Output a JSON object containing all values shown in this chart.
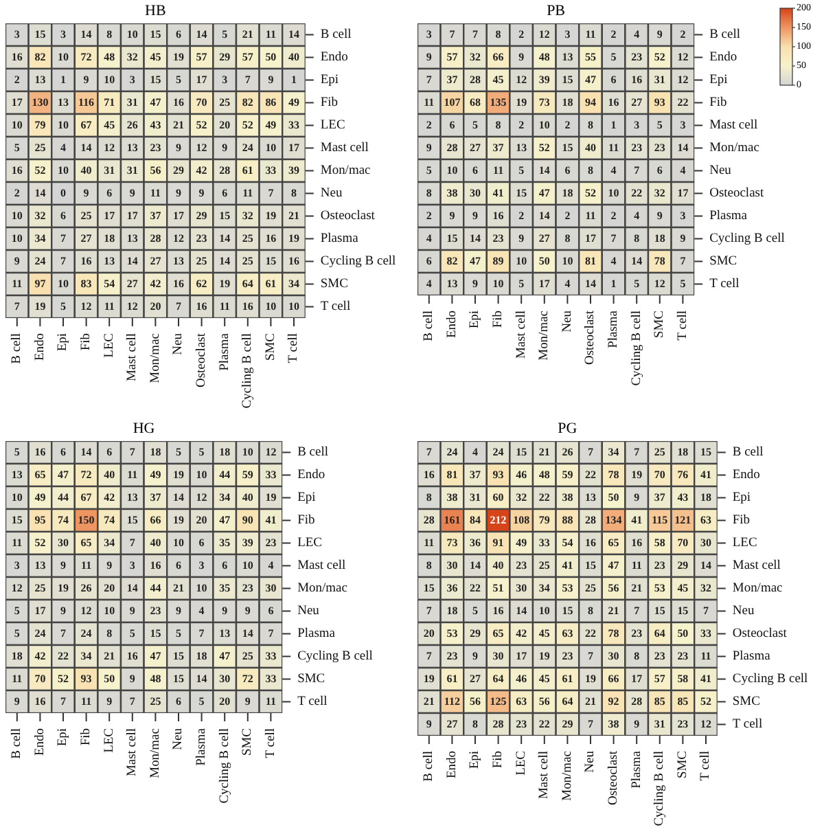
{
  "chart_data": [
    {
      "type": "heatmap",
      "title": "HB",
      "data_labels": true,
      "categories": [
        "B cell",
        "Endo",
        "Epi",
        "Fib",
        "LEC",
        "Mast cell",
        "Mon/mac",
        "Neu",
        "Osteoclast",
        "Plasma",
        "Cycling B cell",
        "SMC",
        "T cell"
      ],
      "y_categories": [
        "B cell",
        "Endo",
        "Epi",
        "Fib",
        "LEC",
        "Mast cell",
        "Mon/mac",
        "Neu",
        "Osteoclast",
        "Plasma",
        "Cycling B cell",
        "SMC",
        "T cell"
      ],
      "cells": [
        [
          3,
          15,
          3,
          14,
          8,
          10,
          15,
          6,
          14,
          5,
          21,
          11,
          14
        ],
        [
          16,
          82,
          10,
          72,
          48,
          32,
          45,
          19,
          57,
          29,
          57,
          50,
          40
        ],
        [
          2,
          13,
          1,
          9,
          10,
          3,
          15,
          5,
          17,
          3,
          7,
          9,
          1
        ],
        [
          17,
          130,
          13,
          116,
          71,
          31,
          47,
          16,
          70,
          25,
          82,
          86,
          49
        ],
        [
          10,
          79,
          10,
          67,
          45,
          26,
          43,
          21,
          52,
          20,
          52,
          49,
          33
        ],
        [
          5,
          25,
          4,
          14,
          12,
          13,
          23,
          9,
          12,
          9,
          24,
          10,
          17
        ],
        [
          16,
          52,
          10,
          40,
          31,
          31,
          56,
          29,
          42,
          28,
          61,
          33,
          39
        ],
        [
          2,
          14,
          0,
          9,
          6,
          9,
          11,
          9,
          9,
          6,
          11,
          7,
          8
        ],
        [
          10,
          32,
          6,
          25,
          17,
          17,
          37,
          17,
          29,
          15,
          32,
          19,
          21
        ],
        [
          10,
          34,
          7,
          27,
          18,
          13,
          28,
          12,
          23,
          14,
          25,
          16,
          19
        ],
        [
          9,
          24,
          7,
          16,
          13,
          14,
          27,
          13,
          25,
          14,
          25,
          15,
          16
        ],
        [
          11,
          97,
          10,
          83,
          54,
          27,
          42,
          16,
          62,
          19,
          64,
          61,
          34
        ],
        [
          7,
          19,
          5,
          12,
          11,
          12,
          20,
          7,
          16,
          11,
          16,
          10,
          10
        ]
      ]
    },
    {
      "type": "heatmap",
      "title": "PB",
      "data_labels": true,
      "clim": [
        0,
        200
      ],
      "cticks": [
        0,
        50,
        100,
        150,
        200
      ],
      "categories": [
        "B cell",
        "Endo",
        "Epi",
        "Fib",
        "Mast cell",
        "Mon/mac",
        "Neu",
        "Osteoclast",
        "Plasma",
        "Cycling B cell",
        "SMC",
        "T cell"
      ],
      "y_categories": [
        "B cell",
        "Endo",
        "Epi",
        "Fib",
        "Mast cell",
        "Mon/mac",
        "Neu",
        "Osteoclast",
        "Plasma",
        "Cycling B cell",
        "SMC",
        "T cell"
      ],
      "cells": [
        [
          3,
          7,
          7,
          8,
          2,
          12,
          3,
          11,
          2,
          4,
          9,
          2
        ],
        [
          9,
          57,
          32,
          66,
          9,
          48,
          13,
          55,
          5,
          23,
          52,
          12
        ],
        [
          7,
          37,
          28,
          45,
          12,
          39,
          15,
          47,
          6,
          16,
          31,
          12
        ],
        [
          11,
          107,
          68,
          135,
          19,
          73,
          18,
          94,
          16,
          27,
          93,
          22
        ],
        [
          2,
          6,
          5,
          8,
          2,
          10,
          2,
          8,
          1,
          3,
          5,
          3
        ],
        [
          9,
          28,
          27,
          37,
          13,
          52,
          15,
          40,
          11,
          23,
          23,
          14
        ],
        [
          5,
          10,
          6,
          11,
          5,
          14,
          6,
          8,
          4,
          7,
          6,
          4
        ],
        [
          8,
          38,
          30,
          41,
          15,
          47,
          18,
          52,
          10,
          22,
          32,
          17
        ],
        [
          2,
          9,
          9,
          16,
          2,
          14,
          2,
          11,
          2,
          4,
          9,
          3
        ],
        [
          4,
          15,
          14,
          23,
          9,
          27,
          8,
          17,
          7,
          8,
          18,
          9
        ],
        [
          6,
          82,
          47,
          89,
          10,
          50,
          10,
          81,
          4,
          14,
          78,
          7
        ],
        [
          4,
          13,
          9,
          10,
          5,
          17,
          4,
          14,
          1,
          5,
          12,
          5
        ]
      ]
    },
    {
      "type": "heatmap",
      "title": "HG",
      "data_labels": true,
      "categories": [
        "B cell",
        "Endo",
        "Epi",
        "Fib",
        "LEC",
        "Mast cell",
        "Mon/mac",
        "Neu",
        "Plasma",
        "Cycling B cell",
        "SMC",
        "T cell"
      ],
      "y_categories": [
        "B cell",
        "Endo",
        "Epi",
        "Fib",
        "LEC",
        "Mast cell",
        "Mon/mac",
        "Neu",
        "Plasma",
        "Cycling B cell",
        "SMC",
        "T cell"
      ],
      "cells": [
        [
          5,
          16,
          6,
          14,
          6,
          7,
          18,
          5,
          5,
          18,
          10,
          12
        ],
        [
          13,
          65,
          47,
          72,
          40,
          11,
          49,
          19,
          10,
          44,
          59,
          33
        ],
        [
          10,
          49,
          44,
          67,
          42,
          13,
          37,
          14,
          12,
          34,
          40,
          19
        ],
        [
          15,
          95,
          74,
          150,
          74,
          15,
          66,
          19,
          20,
          47,
          90,
          41
        ],
        [
          11,
          52,
          30,
          65,
          34,
          7,
          40,
          10,
          6,
          35,
          39,
          23
        ],
        [
          3,
          13,
          9,
          11,
          9,
          3,
          16,
          6,
          3,
          6,
          10,
          4
        ],
        [
          12,
          25,
          19,
          26,
          20,
          14,
          44,
          21,
          10,
          35,
          23,
          30
        ],
        [
          5,
          17,
          9,
          12,
          10,
          9,
          23,
          9,
          4,
          9,
          9,
          6
        ],
        [
          5,
          24,
          7,
          24,
          8,
          5,
          15,
          5,
          7,
          13,
          14,
          7
        ],
        [
          18,
          42,
          22,
          34,
          21,
          16,
          47,
          15,
          18,
          47,
          25,
          33
        ],
        [
          11,
          70,
          52,
          93,
          50,
          9,
          48,
          15,
          14,
          30,
          72,
          33
        ],
        [
          9,
          16,
          7,
          11,
          9,
          7,
          25,
          6,
          5,
          20,
          9,
          11
        ]
      ]
    },
    {
      "type": "heatmap",
      "title": "PG",
      "data_labels": true,
      "categories": [
        "B cell",
        "Endo",
        "Epi",
        "Fib",
        "LEC",
        "Mast cell",
        "Mon/mac",
        "Neu",
        "Osteoclast",
        "Plasma",
        "Cycling B cell",
        "SMC",
        "T cell"
      ],
      "y_categories": [
        "B cell",
        "Endo",
        "Epi",
        "Fib",
        "LEC",
        "Mast cell",
        "Mon/mac",
        "Neu",
        "Osteoclast",
        "Plasma",
        "Cycling B cell",
        "SMC",
        "T cell"
      ],
      "cells": [
        [
          7,
          24,
          4,
          24,
          15,
          21,
          26,
          7,
          34,
          7,
          25,
          18,
          15
        ],
        [
          16,
          81,
          37,
          93,
          46,
          48,
          59,
          22,
          78,
          19,
          70,
          76,
          41
        ],
        [
          8,
          38,
          31,
          60,
          32,
          22,
          38,
          13,
          50,
          9,
          37,
          43,
          18
        ],
        [
          28,
          161,
          84,
          212,
          108,
          79,
          88,
          28,
          134,
          41,
          115,
          121,
          63
        ],
        [
          11,
          73,
          36,
          91,
          49,
          33,
          54,
          16,
          65,
          16,
          58,
          70,
          30
        ],
        [
          8,
          30,
          14,
          40,
          23,
          25,
          41,
          15,
          47,
          11,
          23,
          29,
          14
        ],
        [
          15,
          36,
          22,
          51,
          30,
          34,
          53,
          25,
          56,
          21,
          53,
          45,
          32
        ],
        [
          7,
          18,
          5,
          16,
          14,
          10,
          15,
          8,
          21,
          7,
          15,
          15,
          7
        ],
        [
          20,
          53,
          29,
          65,
          42,
          45,
          63,
          22,
          78,
          23,
          64,
          50,
          33
        ],
        [
          7,
          23,
          9,
          30,
          17,
          19,
          23,
          7,
          30,
          8,
          23,
          23,
          11
        ],
        [
          19,
          61,
          27,
          64,
          46,
          45,
          61,
          19,
          66,
          17,
          57,
          58,
          41
        ],
        [
          21,
          112,
          56,
          125,
          63,
          56,
          64,
          21,
          92,
          28,
          85,
          85,
          52
        ],
        [
          9,
          27,
          8,
          28,
          23,
          22,
          29,
          7,
          38,
          9,
          31,
          23,
          12
        ]
      ]
    }
  ]
}
